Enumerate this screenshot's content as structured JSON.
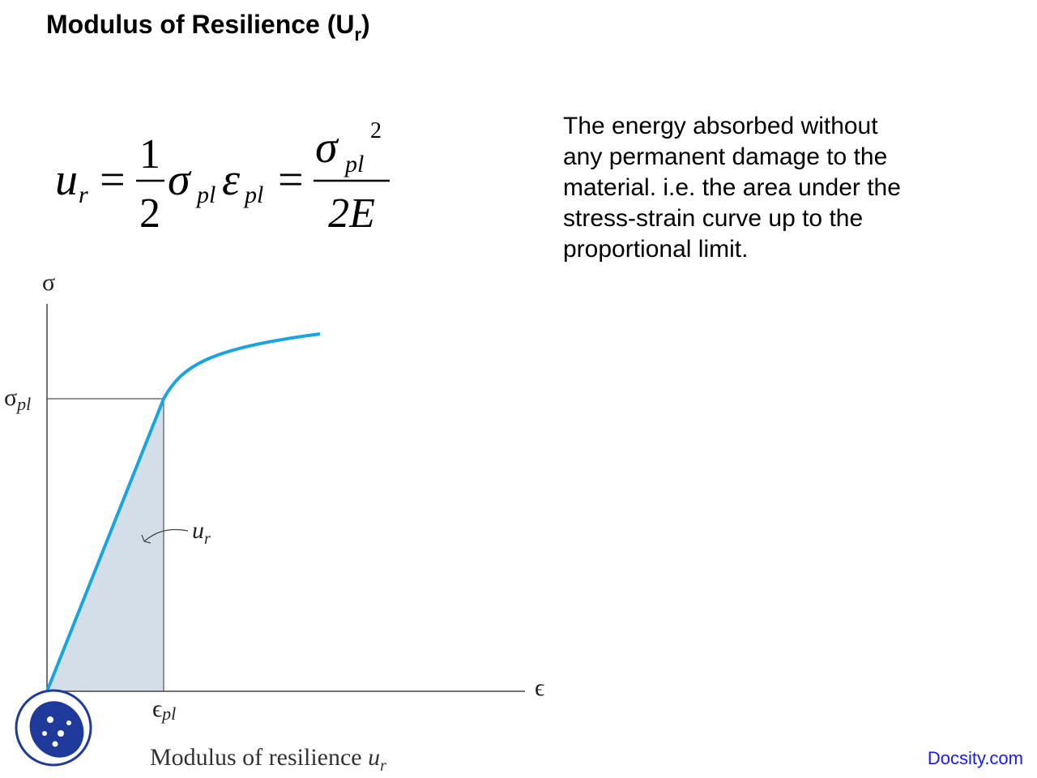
{
  "title": {
    "text": "Modulus of Resilience (U",
    "subscript": "r",
    "close": ")"
  },
  "formula": {
    "lhs": "u",
    "lhs_sub": "r",
    "eq1": "=",
    "num1": "1",
    "den1": "2",
    "sigma": "σ",
    "sigma_sub": "pl",
    "epsilon": "ε",
    "epsilon_sub": "pl",
    "eq2": "=",
    "num2": "σ",
    "num2_sub": "pl",
    "num2_sup": "2",
    "den2": "2E"
  },
  "description": {
    "lines": [
      "The energy absorbed without",
      "any permanent damage to the",
      "material.  i.e. the area under the",
      "stress-strain curve up to the",
      "proportional limit."
    ]
  },
  "diagram": {
    "y_axis": "σ",
    "y_mark": "σ",
    "y_mark_sub": "pl",
    "x_axis": "ϵ",
    "x_mark": "ϵ",
    "x_mark_sub": "pl",
    "area": "u",
    "area_sub": "r",
    "caption": "Modulus of resilience ",
    "caption_symbol": "u",
    "caption_symbol_sub": "r"
  },
  "footer": {
    "link": "Docsity.com"
  }
}
